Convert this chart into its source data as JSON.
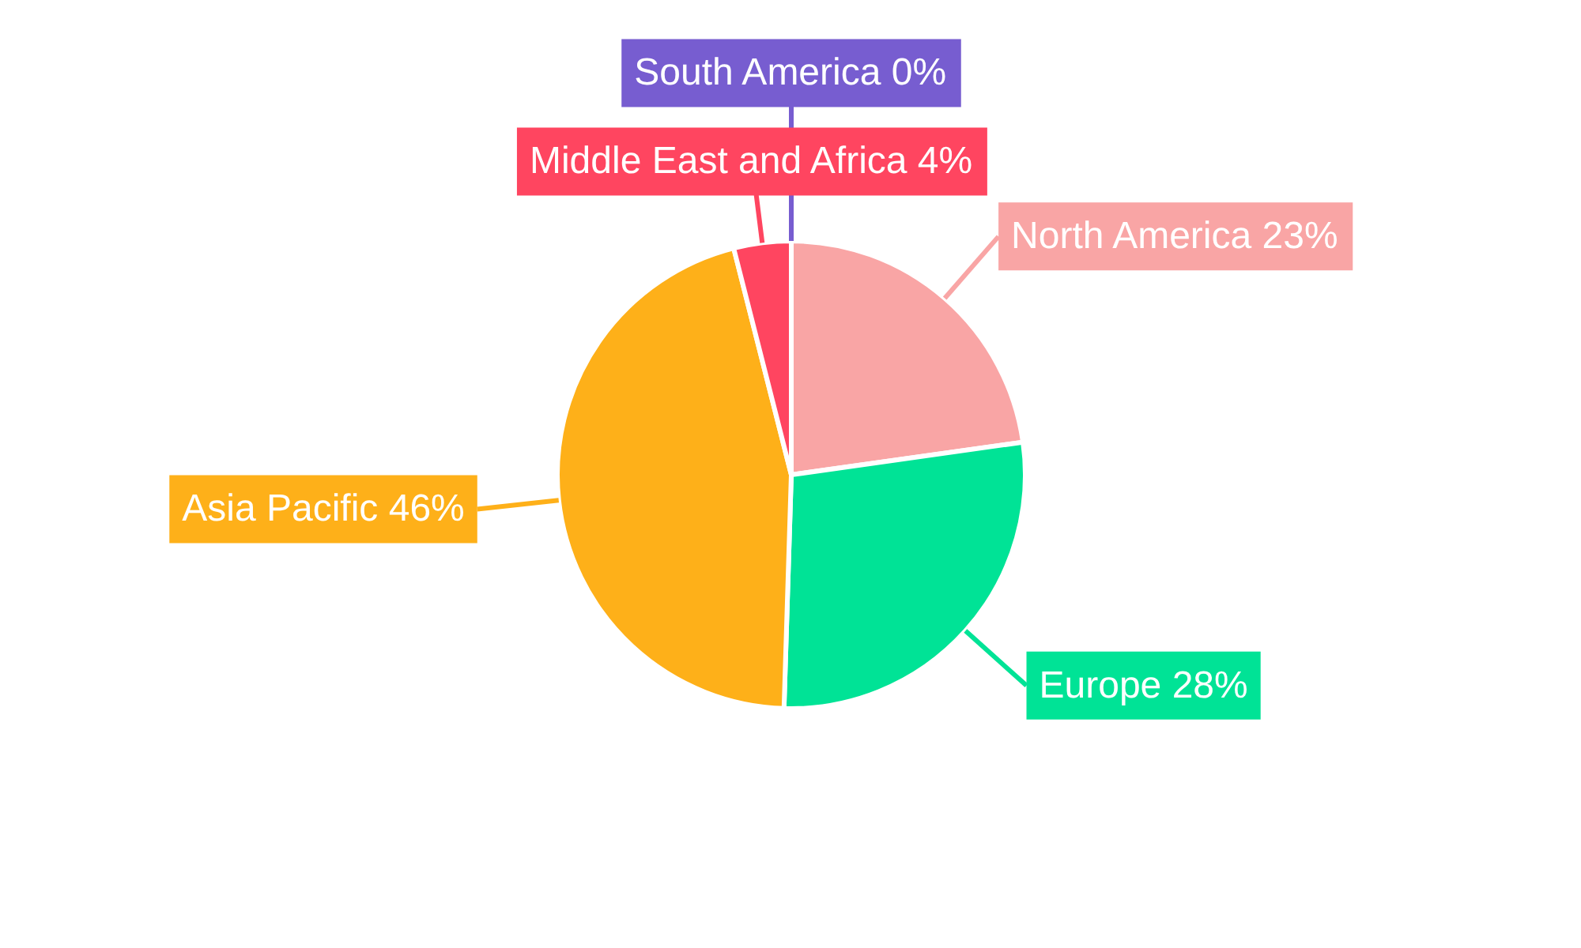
{
  "chart_data": {
    "type": "pie",
    "categories": [
      "North America",
      "Europe",
      "Asia Pacific",
      "Middle East and Africa",
      "South America"
    ],
    "values": [
      23,
      28,
      46,
      4,
      0
    ],
    "colors": [
      "#f9a5a5",
      "#00e396",
      "#feb019",
      "#ff4560",
      "#775dd0"
    ],
    "value_labels": [
      "23%",
      "28%",
      "46%",
      "4%",
      "0%"
    ]
  }
}
